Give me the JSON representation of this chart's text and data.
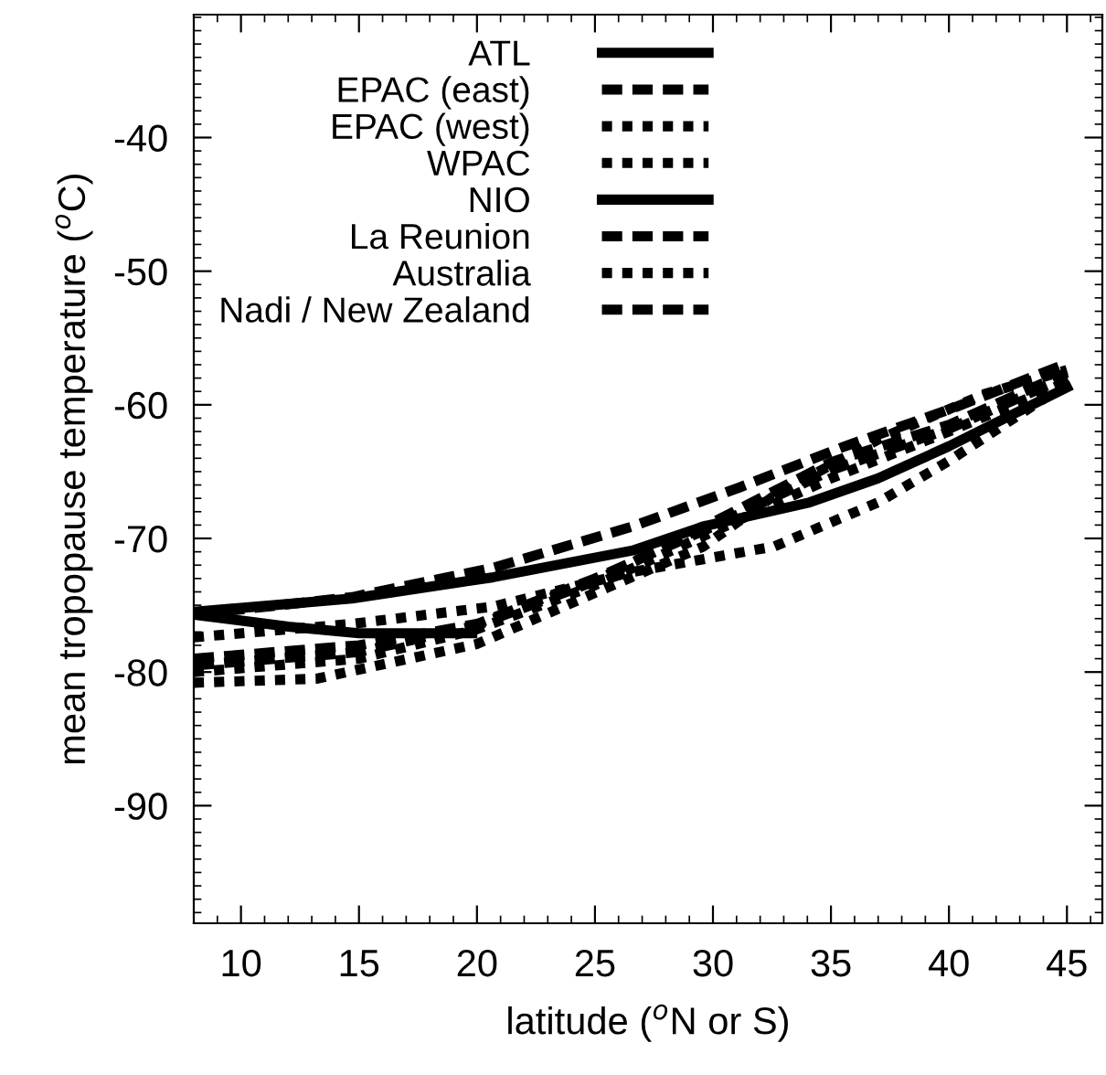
{
  "chart_data": {
    "type": "line",
    "xlabel": "latitude ($^{o}$N or S)",
    "ylabel": "mean tropopause temperature ($^{o}$C)",
    "xlim": [
      8,
      46.5
    ],
    "ylim": [
      -98.8,
      -30.8
    ],
    "xticks": [
      10,
      15,
      20,
      25,
      30,
      35,
      40,
      45
    ],
    "yticks": [
      -40,
      -50,
      -60,
      -70,
      -80,
      -90
    ],
    "grid": false,
    "legend": "top left",
    "marker": "none",
    "series": [
      {
        "name": "ATL",
        "color": "#000000",
        "line_style": "solid",
        "x": [
          8,
          14.7,
          20.7,
          26.6,
          29.6,
          34.1,
          37,
          40,
          45
        ],
        "values": [
          -75.5,
          -74.5,
          -72.9,
          -70.9,
          -69.1,
          -67.3,
          -65.5,
          -63.1,
          -58.7
        ]
      },
      {
        "name": "EPAC (east)",
        "color": "#000000",
        "line_style": "dashed",
        "x": [
          8,
          15,
          20,
          25,
          30,
          35,
          40,
          45
        ],
        "values": [
          -79,
          -78,
          -76.4,
          -73,
          -69.1,
          -64.9,
          -61.8,
          -57.9
        ]
      },
      {
        "name": "EPAC (west)",
        "color": "#000000",
        "line_style": "dotted",
        "x": [
          8,
          15,
          20,
          25,
          30,
          35,
          40,
          45
        ],
        "values": [
          -80,
          -79,
          -76.8,
          -73.5,
          -69.5,
          -65.5,
          -62,
          -58.3
        ]
      },
      {
        "name": "WPAC",
        "color": "#000000",
        "line_style": "dotted",
        "x": [
          8,
          14.7,
          20.7,
          26.6,
          32.6,
          37,
          40,
          45
        ],
        "values": [
          -77.4,
          -76.4,
          -75.1,
          -72.5,
          -70.6,
          -67.3,
          -64.2,
          -58.4
        ]
      },
      {
        "name": "NIO",
        "color": "#000000",
        "line_style": "solid",
        "x": [
          8,
          12,
          15,
          19.8
        ],
        "values": [
          -75.7,
          -76.6,
          -77.1,
          -77.1
        ]
      },
      {
        "name": "La Reunion",
        "color": "#000000",
        "line_style": "dashed",
        "x": [
          8,
          15,
          20,
          25,
          30,
          35,
          40,
          45
        ],
        "values": [
          -79.5,
          -78.5,
          -76.5,
          -73.2,
          -68.8,
          -64.3,
          -61.5,
          -57.6
        ]
      },
      {
        "name": "Australia",
        "color": "#000000",
        "line_style": "dotted",
        "x": [
          8,
          13.2,
          20,
          25.1,
          29.6,
          32.6,
          37,
          41.5,
          45
        ],
        "values": [
          -80.8,
          -80.5,
          -77.9,
          -74,
          -70.6,
          -66.8,
          -62.6,
          -59.2,
          -57.4
        ]
      },
      {
        "name": "Nadi / New Zealand",
        "color": "#000000",
        "line_style": "dashed",
        "x": [
          8,
          14.7,
          20.7,
          26.6,
          31.1,
          35.6,
          40.1,
          45
        ],
        "values": [
          -75.7,
          -74.4,
          -72.2,
          -69.1,
          -66.2,
          -63.1,
          -60.3,
          -56.9
        ]
      }
    ]
  }
}
